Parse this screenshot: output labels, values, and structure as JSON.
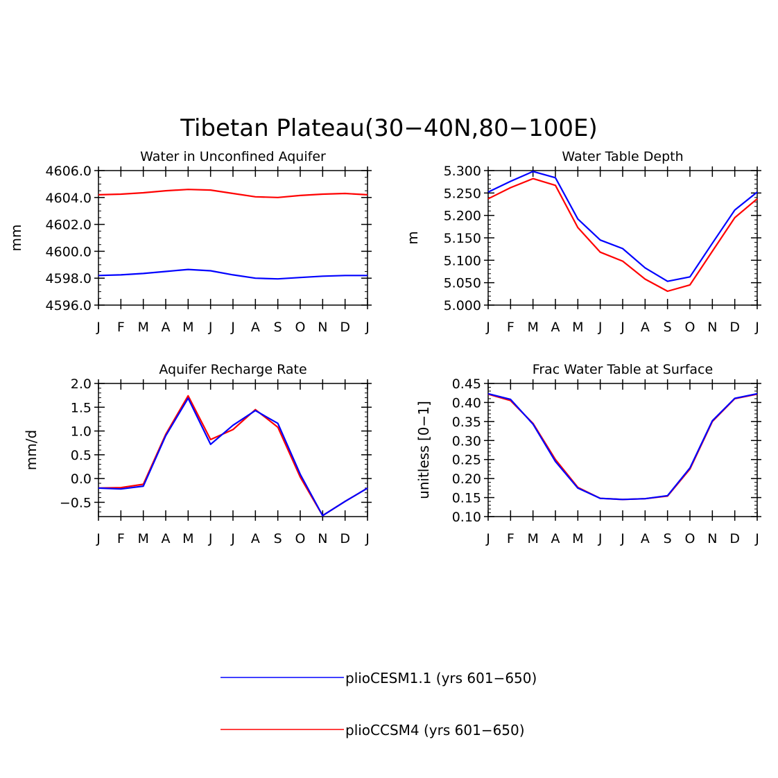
{
  "figure": {
    "title": "Tibetan Plateau(30−40N,80−100E)"
  },
  "legend": {
    "placement": "bottom-center",
    "items": [
      {
        "label": "plioCESM1.1 (yrs 601−650)",
        "color": "#0000ff"
      },
      {
        "label": "plioCCSM4 (yrs 601−650)",
        "color": "#ff0000"
      }
    ]
  },
  "chart_data": [
    {
      "type": "line",
      "title": "Water in Unconfined Aquifer",
      "xlabel": "",
      "ylabel": "mm",
      "categories": [
        "J",
        "F",
        "M",
        "A",
        "M",
        "J",
        "J",
        "A",
        "S",
        "O",
        "N",
        "D",
        "J"
      ],
      "ylim": [
        4596.0,
        4606.0
      ],
      "yticks": [
        "4596.0",
        "4598.0",
        "4600.0",
        "4602.0",
        "4604.0",
        "4606.0"
      ],
      "ytick_values": [
        4596,
        4598,
        4600,
        4602,
        4604,
        4606
      ],
      "minor_step": 0.5,
      "series": [
        {
          "color": "#ff0000",
          "values": [
            4604.2,
            4604.25,
            4604.35,
            4604.5,
            4604.6,
            4604.55,
            4604.3,
            4604.05,
            4604.0,
            4604.15,
            4604.25,
            4604.3,
            4604.2
          ]
        },
        {
          "color": "#0000ff",
          "values": [
            4598.2,
            4598.25,
            4598.35,
            4598.5,
            4598.65,
            4598.55,
            4598.25,
            4598.0,
            4597.95,
            4598.05,
            4598.15,
            4598.2,
            4598.2
          ]
        }
      ]
    },
    {
      "type": "line",
      "title": "Water Table Depth",
      "xlabel": "",
      "ylabel": "m",
      "categories": [
        "J",
        "F",
        "M",
        "A",
        "M",
        "J",
        "J",
        "A",
        "S",
        "O",
        "N",
        "D",
        "J"
      ],
      "ylim": [
        5.0,
        5.3
      ],
      "yticks": [
        "5.000",
        "5.050",
        "5.100",
        "5.150",
        "5.200",
        "5.250",
        "5.300"
      ],
      "ytick_values": [
        5.0,
        5.05,
        5.1,
        5.15,
        5.2,
        5.25,
        5.3
      ],
      "minor_step": 0.01,
      "series": [
        {
          "color": "#ff0000",
          "values": [
            5.237,
            5.262,
            5.282,
            5.267,
            5.173,
            5.118,
            5.098,
            5.058,
            5.031,
            5.045,
            5.12,
            5.195,
            5.237
          ]
        },
        {
          "color": "#0000ff",
          "values": [
            5.252,
            5.276,
            5.298,
            5.284,
            5.192,
            5.145,
            5.126,
            5.083,
            5.053,
            5.063,
            5.138,
            5.212,
            5.252
          ]
        }
      ]
    },
    {
      "type": "line",
      "title": "Aquifer Recharge Rate",
      "xlabel": "",
      "ylabel": "mm/d",
      "categories": [
        "J",
        "F",
        "M",
        "A",
        "M",
        "J",
        "J",
        "A",
        "S",
        "O",
        "N",
        "D",
        "J"
      ],
      "ylim": [
        -0.8,
        2.0
      ],
      "yticks": [
        "−0.5",
        "0.0",
        "0.5",
        "1.0",
        "1.5",
        "2.0"
      ],
      "ytick_values": [
        -0.5,
        0.0,
        0.5,
        1.0,
        1.5,
        2.0
      ],
      "minor_step": 0.1,
      "series": [
        {
          "color": "#ff0000",
          "values": [
            -0.2,
            -0.19,
            -0.12,
            0.93,
            1.74,
            0.82,
            1.03,
            1.45,
            1.08,
            0.03,
            -0.78,
            -0.48,
            -0.2
          ]
        },
        {
          "color": "#0000ff",
          "values": [
            -0.2,
            -0.22,
            -0.16,
            0.9,
            1.69,
            0.72,
            1.12,
            1.43,
            1.16,
            0.09,
            -0.78,
            -0.48,
            -0.2
          ]
        }
      ]
    },
    {
      "type": "line",
      "title": "Frac Water Table at Surface",
      "xlabel": "",
      "ylabel": "unitless [0−1]",
      "categories": [
        "J",
        "F",
        "M",
        "A",
        "M",
        "J",
        "J",
        "A",
        "S",
        "O",
        "N",
        "D",
        "J"
      ],
      "ylim": [
        0.1,
        0.45
      ],
      "yticks": [
        "0.10",
        "0.15",
        "0.20",
        "0.25",
        "0.30",
        "0.35",
        "0.40",
        "0.45"
      ],
      "ytick_values": [
        0.1,
        0.15,
        0.2,
        0.25,
        0.3,
        0.35,
        0.4,
        0.45
      ],
      "minor_step": 0.01,
      "series": [
        {
          "color": "#ff0000",
          "values": [
            0.422,
            0.405,
            0.345,
            0.25,
            0.177,
            0.148,
            0.145,
            0.147,
            0.154,
            0.225,
            0.35,
            0.41,
            0.422
          ]
        },
        {
          "color": "#0000ff",
          "values": [
            0.423,
            0.408,
            0.343,
            0.245,
            0.175,
            0.148,
            0.145,
            0.147,
            0.155,
            0.228,
            0.352,
            0.411,
            0.423
          ]
        }
      ]
    }
  ]
}
